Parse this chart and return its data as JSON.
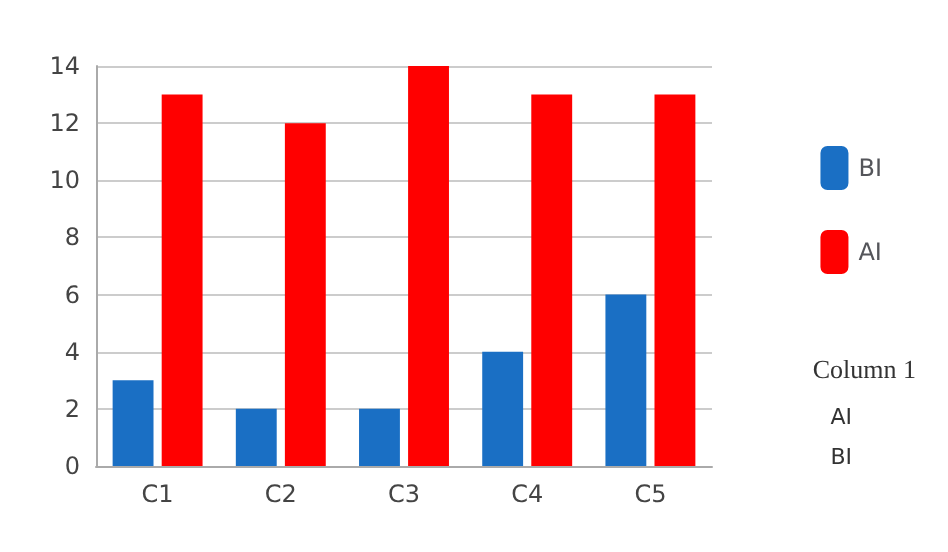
{
  "chart_data": {
    "type": "bar",
    "categories": [
      "C1",
      "C2",
      "C3",
      "C4",
      "C5"
    ],
    "series": [
      {
        "name": "BI",
        "color": "#1a6fc4",
        "values": [
          3,
          2,
          2,
          4,
          6
        ]
      },
      {
        "name": "AI",
        "color": "#ff0000",
        "values": [
          13,
          12,
          14,
          13,
          13
        ]
      }
    ],
    "ylim": [
      0,
      14
    ],
    "yticks": [
      0,
      2,
      4,
      6,
      8,
      10,
      12,
      14
    ],
    "grid": "y",
    "legend": "right",
    "annotations": [
      "Column 1",
      "AI",
      "BI"
    ]
  }
}
